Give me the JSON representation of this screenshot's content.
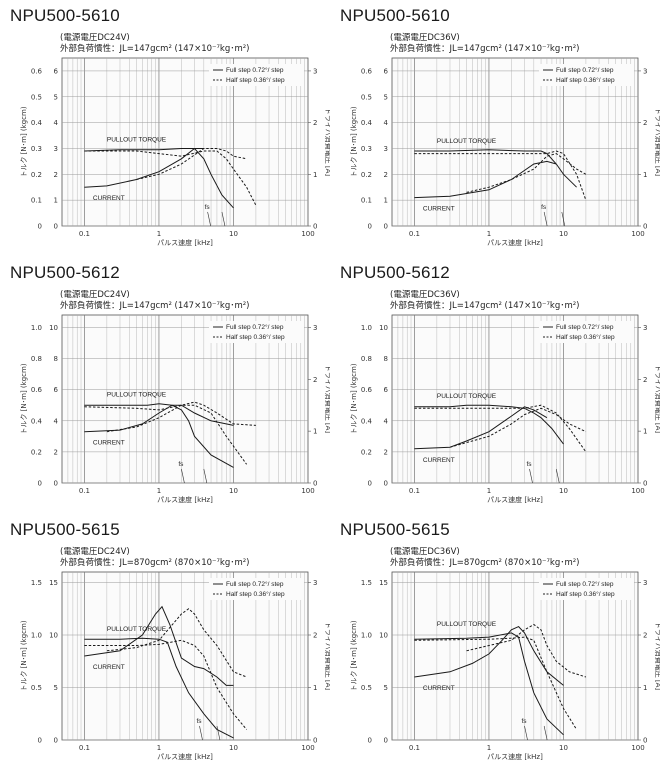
{
  "chart_data": [
    {
      "type": "line",
      "title": "NPU500-5610",
      "subtitle_voltage": "(電源電圧DC24V)",
      "subtitle_inertia": "外部負荷慣性：JL=147gcm² (147×10⁻⁷kg･m²)",
      "xlabel": "パルス速度 [kHz]",
      "ylabel_left": "トルク [N･m] (kgcm)",
      "ylabel_right": "ドライバ消費電圧 [A]",
      "xscale": "log",
      "xlim": [
        0.05,
        100
      ],
      "x_ticks": [
        "0.1",
        "1",
        "10",
        "100"
      ],
      "y_nm_ticks": [
        "0",
        "0.1",
        "0.2",
        "0.3",
        "0.4",
        "0.5",
        "0.6"
      ],
      "y_kgcm_ticks": [
        "0",
        "1",
        "2",
        "3",
        "4",
        "5",
        "6"
      ],
      "y_amp_ticks": [
        "0",
        "1",
        "2",
        "3"
      ],
      "y_nm_max": 0.65,
      "y_amp_max": 3.25,
      "legend": [
        "Full step 0.72°/ step",
        "Half step 0.36°/ step"
      ],
      "annotations": {
        "pullout": "PULLOUT  TORQUE",
        "current": "CURRENT",
        "fs": "fs"
      },
      "fs_x": [
        4.5,
        7.0
      ],
      "series": [
        {
          "name": "Full step 0.72°/ step",
          "kind": "torque",
          "x": [
            0.1,
            0.3,
            1,
            2,
            3,
            4,
            5,
            7,
            10
          ],
          "y": [
            0.29,
            0.295,
            0.295,
            0.3,
            0.3,
            0.26,
            0.2,
            0.12,
            0.07
          ]
        },
        {
          "name": "Full step 0.72°/ step",
          "kind": "current",
          "x": [
            0.1,
            0.2,
            0.5,
            1,
            2,
            3,
            4
          ],
          "y": [
            0.15,
            0.155,
            0.18,
            0.21,
            0.26,
            0.3,
            0.3
          ]
        },
        {
          "name": "Half step 0.36°/ step",
          "kind": "torque",
          "x": [
            0.1,
            0.5,
            1,
            2,
            4,
            6,
            8,
            10,
            15,
            20
          ],
          "y": [
            0.29,
            0.29,
            0.28,
            0.27,
            0.29,
            0.29,
            0.26,
            0.22,
            0.15,
            0.08
          ]
        },
        {
          "name": "Half step 0.36°/ step",
          "kind": "current",
          "x": [
            0.5,
            1,
            2,
            4,
            6,
            8,
            10,
            15
          ],
          "y": [
            0.18,
            0.2,
            0.24,
            0.3,
            0.3,
            0.29,
            0.27,
            0.26
          ]
        }
      ]
    },
    {
      "type": "line",
      "title": "NPU500-5610",
      "subtitle_voltage": "(電源電圧DC36V)",
      "subtitle_inertia": "外部負荷慣性：JL=147gcm² (147×10⁻⁷kg･m²)",
      "xlabel": "パルス速度 [kHz]",
      "ylabel_left": "トルク [N･m] (kgcm)",
      "ylabel_right": "ドライバ消費電圧 [A]",
      "xscale": "log",
      "xlim": [
        0.05,
        100
      ],
      "x_ticks": [
        "0.1",
        "1",
        "10",
        "100"
      ],
      "y_nm_ticks": [
        "0",
        "0.1",
        "0.2",
        "0.3",
        "0.4",
        "0.5",
        "0.6"
      ],
      "y_kgcm_ticks": [
        "0",
        "1",
        "2",
        "3",
        "4",
        "5",
        "6"
      ],
      "y_amp_ticks": [
        "0",
        "1",
        "2",
        "3"
      ],
      "y_nm_max": 0.65,
      "y_amp_max": 3.25,
      "legend": [
        "Full step 0.72°/ step",
        "Half step 0.36°/ step"
      ],
      "annotations": {
        "pullout": "PULLOUT  TORQUE",
        "current": "CURRENT",
        "fs": "fs"
      },
      "fs_x": [
        5.5,
        9.5
      ],
      "series": [
        {
          "name": "Full step 0.72°/ step",
          "kind": "torque",
          "x": [
            0.1,
            0.3,
            1,
            3,
            5,
            6,
            8,
            10,
            15
          ],
          "y": [
            0.29,
            0.29,
            0.295,
            0.29,
            0.29,
            0.28,
            0.24,
            0.2,
            0.15
          ]
        },
        {
          "name": "Full step 0.72°/ step",
          "kind": "current",
          "x": [
            0.1,
            0.3,
            1,
            2,
            4,
            6,
            8
          ],
          "y": [
            0.11,
            0.115,
            0.14,
            0.18,
            0.24,
            0.25,
            0.24
          ]
        },
        {
          "name": "Half step 0.36°/ step",
          "kind": "torque",
          "x": [
            0.1,
            1,
            3,
            6,
            8,
            10,
            15,
            20
          ],
          "y": [
            0.28,
            0.28,
            0.28,
            0.28,
            0.29,
            0.28,
            0.2,
            0.1
          ]
        },
        {
          "name": "Half step 0.36°/ step",
          "kind": "current",
          "x": [
            0.5,
            1,
            2,
            4,
            6,
            8,
            10,
            15,
            20
          ],
          "y": [
            0.13,
            0.15,
            0.18,
            0.22,
            0.27,
            0.28,
            0.26,
            0.22,
            0.2
          ]
        }
      ]
    },
    {
      "type": "line",
      "title": "NPU500-5612",
      "subtitle_voltage": "(電源電圧DC24V)",
      "subtitle_inertia": "外部負荷慣性：JL=147gcm² (147×10⁻⁷kg･m²)",
      "xlabel": "パルス速度 [kHz]",
      "ylabel_left": "トルク [N･m] (kgcm)",
      "ylabel_right": "ドライバ消費電圧 [A]",
      "xscale": "log",
      "xlim": [
        0.05,
        100
      ],
      "x_ticks": [
        "0.1",
        "1",
        "10",
        "100"
      ],
      "y_nm_ticks": [
        "0",
        "0.2",
        "0.4",
        "0.6",
        "0.8",
        "1.0"
      ],
      "y_kgcm_ticks": [
        "0",
        "2",
        "4",
        "6",
        "8",
        "10"
      ],
      "y_amp_ticks": [
        "0",
        "1",
        "2",
        "3"
      ],
      "y_nm_max": 1.08,
      "y_amp_max": 3.24,
      "legend": [
        "Full step 0.72°/ step",
        "Half step 0.36°/ step"
      ],
      "annotations": {
        "pullout": "PULLOUT  TORQUE",
        "current": "CURRENT",
        "fs": "fs"
      },
      "fs_x": [
        2.0,
        4.0
      ],
      "series": [
        {
          "name": "Full step 0.72°/ step",
          "kind": "torque",
          "x": [
            0.1,
            0.3,
            0.7,
            1,
            1.5,
            2,
            2.5,
            3,
            5,
            10
          ],
          "y": [
            0.5,
            0.5,
            0.5,
            0.51,
            0.5,
            0.47,
            0.4,
            0.3,
            0.18,
            0.1
          ]
        },
        {
          "name": "Full step 0.72°/ step",
          "kind": "current",
          "x": [
            0.1,
            0.3,
            0.6,
            1,
            1.5,
            2,
            3,
            5,
            10
          ],
          "y": [
            0.33,
            0.34,
            0.38,
            0.45,
            0.5,
            0.5,
            0.45,
            0.4,
            0.37
          ]
        },
        {
          "name": "Half step 0.36°/ step",
          "kind": "torque",
          "x": [
            0.1,
            0.5,
            1,
            2,
            3,
            4,
            6,
            10,
            20
          ],
          "y": [
            0.49,
            0.48,
            0.47,
            0.5,
            0.52,
            0.5,
            0.45,
            0.38,
            0.37
          ]
        },
        {
          "name": "Half step 0.36°/ step",
          "kind": "current",
          "x": [
            0.2,
            0.5,
            1,
            2,
            3,
            5,
            8,
            15
          ],
          "y": [
            0.33,
            0.36,
            0.42,
            0.5,
            0.5,
            0.45,
            0.3,
            0.12
          ]
        }
      ]
    },
    {
      "type": "line",
      "title": "NPU500-5612",
      "subtitle_voltage": "(電源電圧DC36V)",
      "subtitle_inertia": "外部負荷慣性：JL=147gcm² (147×10⁻⁷kg･m²)",
      "xlabel": "パルス速度 [kHz]",
      "ylabel_left": "トルク [N･m] (kgcm)",
      "ylabel_right": "ドライバ消費電圧 [A]",
      "xscale": "log",
      "xlim": [
        0.05,
        100
      ],
      "x_ticks": [
        "0.1",
        "1",
        "10",
        "100"
      ],
      "y_nm_ticks": [
        "0",
        "0.2",
        "0.4",
        "0.6",
        "0.8",
        "1.0"
      ],
      "y_kgcm_ticks": [
        "0",
        "2",
        "4",
        "6",
        "8",
        "10"
      ],
      "y_amp_ticks": [
        "0",
        "1",
        "2",
        "3"
      ],
      "y_nm_max": 1.08,
      "y_amp_max": 3.24,
      "legend": [
        "Full step 0.72°/ step",
        "Half step 0.36°/ step"
      ],
      "annotations": {
        "pullout": "PULLOUT  TORQUE",
        "current": "CURRENT",
        "fs": "fs"
      },
      "fs_x": [
        3.5,
        8.0
      ],
      "series": [
        {
          "name": "Full step 0.72°/ step",
          "kind": "torque",
          "x": [
            0.1,
            0.3,
            0.5,
            1,
            2,
            3,
            4,
            5,
            7,
            10
          ],
          "y": [
            0.49,
            0.49,
            0.5,
            0.5,
            0.49,
            0.48,
            0.45,
            0.42,
            0.35,
            0.25
          ]
        },
        {
          "name": "Full step 0.72°/ step",
          "kind": "current",
          "x": [
            0.1,
            0.3,
            0.5,
            1,
            2,
            3,
            4,
            6
          ],
          "y": [
            0.22,
            0.23,
            0.27,
            0.33,
            0.43,
            0.49,
            0.47,
            0.42
          ]
        },
        {
          "name": "Half step 0.36°/ step",
          "kind": "torque",
          "x": [
            0.1,
            0.5,
            1,
            3,
            5,
            8,
            12,
            20
          ],
          "y": [
            0.48,
            0.48,
            0.48,
            0.48,
            0.5,
            0.45,
            0.35,
            0.2
          ]
        },
        {
          "name": "Half step 0.36°/ step",
          "kind": "current",
          "x": [
            0.3,
            0.5,
            1,
            2,
            3,
            5,
            8,
            12,
            20
          ],
          "y": [
            0.23,
            0.26,
            0.3,
            0.38,
            0.44,
            0.48,
            0.44,
            0.38,
            0.33
          ]
        }
      ]
    },
    {
      "type": "line",
      "title": "NPU500-5615",
      "subtitle_voltage": "(電源電圧DC24V)",
      "subtitle_inertia": "外部負荷慣性：JL=870gcm² (870×10⁻⁷kg･m²)",
      "xlabel": "パルス速度 [kHz]",
      "ylabel_left": "トルク [N･m] (kgcm)",
      "ylabel_right": "ドライバ消費電圧 [A]",
      "xscale": "log",
      "xlim": [
        0.05,
        100
      ],
      "x_ticks": [
        "0.1",
        "1",
        "10",
        "100"
      ],
      "y_nm_ticks": [
        "0",
        "0.5",
        "1.0",
        "1.5"
      ],
      "y_kgcm_ticks": [
        "0",
        "5",
        "10",
        "15"
      ],
      "y_amp_ticks": [
        "0",
        "1",
        "2",
        "3"
      ],
      "y_nm_max": 1.6,
      "y_amp_max": 3.2,
      "legend": [
        "Full step 0.72°/ step",
        "Half step 0.36°/ step"
      ],
      "annotations": {
        "pullout": "PULLOUT  TORQUE",
        "current": "CURRENT",
        "fs": "fs"
      },
      "fs_x": [
        3.5,
        6.0
      ],
      "series": [
        {
          "name": "Full step 0.72°/ step",
          "kind": "torque",
          "x": [
            0.1,
            0.3,
            0.6,
            1,
            1.3,
            1.7,
            2.5,
            4,
            6,
            10
          ],
          "y": [
            0.96,
            0.96,
            0.97,
            0.96,
            0.93,
            0.7,
            0.45,
            0.25,
            0.1,
            0.02
          ]
        },
        {
          "name": "Full step 0.72°/ step",
          "kind": "current",
          "x": [
            0.1,
            0.3,
            0.6,
            0.9,
            1.1,
            1.4,
            2,
            3,
            4,
            6,
            8,
            10
          ],
          "y": [
            0.8,
            0.85,
            1.0,
            1.2,
            1.27,
            1.1,
            0.78,
            0.7,
            0.68,
            0.6,
            0.52,
            0.52
          ]
        },
        {
          "name": "Half step 0.36°/ step",
          "kind": "torque",
          "x": [
            0.1,
            0.5,
            1,
            2,
            3,
            4,
            6,
            10,
            15
          ],
          "y": [
            0.9,
            0.9,
            0.91,
            0.95,
            0.9,
            0.8,
            0.5,
            0.25,
            0.1
          ]
        },
        {
          "name": "Half step 0.36°/ step",
          "kind": "current",
          "x": [
            0.2,
            0.5,
            1,
            2,
            2.5,
            3,
            4,
            6,
            10,
            15
          ],
          "y": [
            0.85,
            0.88,
            0.95,
            1.2,
            1.25,
            1.2,
            1.05,
            0.9,
            0.65,
            0.6
          ]
        }
      ]
    },
    {
      "type": "line",
      "title": "NPU500-5615",
      "subtitle_voltage": "(電源電圧DC36V)",
      "subtitle_inertia": "外部負荷慣性：JL=870gcm² (870×10⁻⁷kg･m²)",
      "xlabel": "パルス速度 [kHz]",
      "ylabel_left": "トルク [N･m] (kgcm)",
      "ylabel_right": "ドライバ消費電圧 [A]",
      "xscale": "log",
      "xlim": [
        0.05,
        100
      ],
      "x_ticks": [
        "0.1",
        "1",
        "10",
        "100"
      ],
      "y_nm_ticks": [
        "0",
        "0.5",
        "1.0",
        "1.5"
      ],
      "y_kgcm_ticks": [
        "0",
        "5",
        "10",
        "15"
      ],
      "y_amp_ticks": [
        "0",
        "1",
        "2",
        "3"
      ],
      "y_nm_max": 1.6,
      "y_amp_max": 3.2,
      "legend": [
        "Full step 0.72°/ step",
        "Half step 0.36°/ step"
      ],
      "annotations": {
        "pullout": "PULLOUT  TORQUE",
        "current": "CURRENT",
        "fs": "fs"
      },
      "fs_x": [
        3.0,
        5.5
      ],
      "series": [
        {
          "name": "Full step 0.72°/ step",
          "kind": "torque",
          "x": [
            0.1,
            0.5,
            1,
            2,
            2.5,
            3,
            4,
            6,
            10
          ],
          "y": [
            0.96,
            0.97,
            0.98,
            1.02,
            0.98,
            0.75,
            0.45,
            0.2,
            0.05
          ]
        },
        {
          "name": "Full step 0.72°/ step",
          "kind": "current",
          "x": [
            0.1,
            0.3,
            0.6,
            1,
            1.5,
            2,
            2.5,
            3,
            4,
            6,
            10
          ],
          "y": [
            0.6,
            0.65,
            0.73,
            0.82,
            0.95,
            1.05,
            1.08,
            1.02,
            0.85,
            0.65,
            0.52
          ]
        },
        {
          "name": "Half step 0.36°/ step",
          "kind": "torque",
          "x": [
            0.1,
            1,
            2,
            3,
            4,
            6,
            10,
            15
          ],
          "y": [
            0.95,
            0.96,
            0.97,
            0.98,
            0.95,
            0.65,
            0.3,
            0.1
          ]
        },
        {
          "name": "Half step 0.36°/ step",
          "kind": "current",
          "x": [
            0.5,
            1,
            2,
            3,
            4,
            5,
            6,
            8,
            12,
            20
          ],
          "y": [
            0.85,
            0.9,
            0.95,
            1.05,
            1.1,
            1.05,
            0.9,
            0.75,
            0.65,
            0.6
          ]
        }
      ]
    }
  ]
}
